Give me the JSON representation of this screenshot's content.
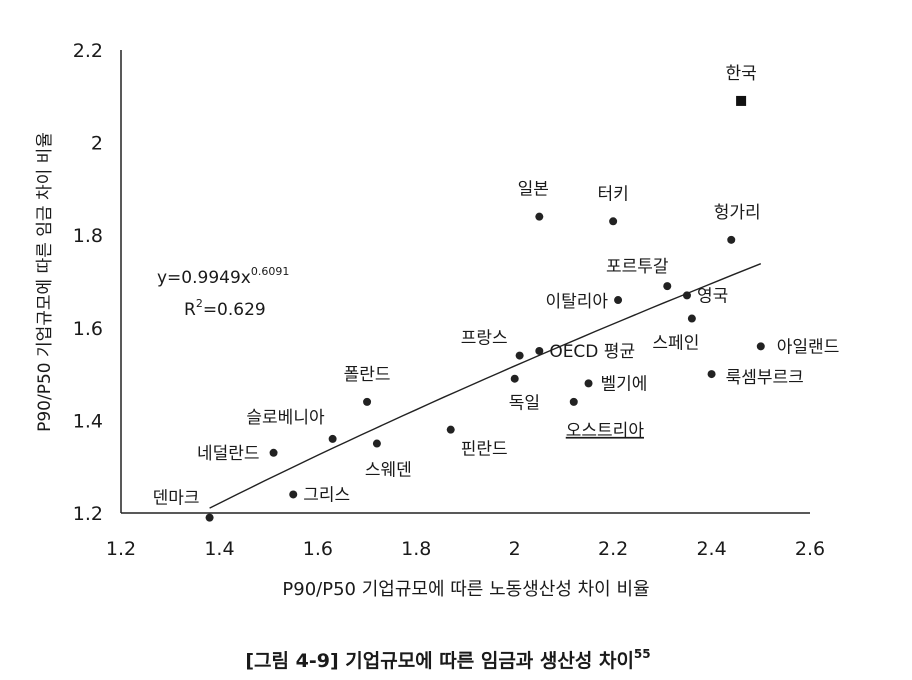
{
  "chart_data": {
    "type": "scatter",
    "xlabel": "P90/P50 기업규모에 따른 노동생산성 차이 비율",
    "ylabel": "P90/P50 기업규모에 따른 임금 차이 비율",
    "xlim": [
      1.2,
      2.6
    ],
    "ylim": [
      1.2,
      2.2
    ],
    "x_ticks": [
      "1.2",
      "1.4",
      "1.6",
      "1.8",
      "2",
      "2.2",
      "2.4",
      "2.6"
    ],
    "y_ticks": [
      "1.2",
      "1.4",
      "1.6",
      "1.8",
      "2",
      "2.2"
    ],
    "points": [
      {
        "label": "한국",
        "x": 2.46,
        "y": 2.09,
        "marker": "square"
      },
      {
        "label": "일본",
        "x": 2.05,
        "y": 1.84
      },
      {
        "label": "터키",
        "x": 2.2,
        "y": 1.83
      },
      {
        "label": "헝가리",
        "x": 2.44,
        "y": 1.79
      },
      {
        "label": "포르투갈",
        "x": 2.31,
        "y": 1.69
      },
      {
        "label": "이탈리아",
        "x": 2.21,
        "y": 1.66
      },
      {
        "label": "영국",
        "x": 2.35,
        "y": 1.67
      },
      {
        "label": "스페인",
        "x": 2.36,
        "y": 1.62
      },
      {
        "label": "아일랜드",
        "x": 2.5,
        "y": 1.56
      },
      {
        "label": "룩셈부르크",
        "x": 2.4,
        "y": 1.5
      },
      {
        "label": "프랑스",
        "x": 2.01,
        "y": 1.54
      },
      {
        "label": "OECD 평균",
        "x": 2.05,
        "y": 1.55,
        "underline": false
      },
      {
        "label": "벨기에",
        "x": 2.15,
        "y": 1.48
      },
      {
        "label": "독일",
        "x": 2.0,
        "y": 1.49
      },
      {
        "label": "오스트리아",
        "x": 2.12,
        "y": 1.44,
        "underline": true
      },
      {
        "label": "폴란드",
        "x": 1.7,
        "y": 1.44
      },
      {
        "label": "핀란드",
        "x": 1.87,
        "y": 1.38
      },
      {
        "label": "슬로베니아",
        "x": 1.63,
        "y": 1.36
      },
      {
        "label": "스웨덴",
        "x": 1.72,
        "y": 1.35
      },
      {
        "label": "네덜란드",
        "x": 1.51,
        "y": 1.33
      },
      {
        "label": "그리스",
        "x": 1.55,
        "y": 1.24
      },
      {
        "label": "덴마크",
        "x": 1.38,
        "y": 1.19
      }
    ],
    "trendline": {
      "equation": "y=0.9949x",
      "exponent": "0.6091",
      "r2_prefix": "R",
      "r2_sup": "2",
      "r2_value": "=0.629",
      "coef": 0.9949,
      "power": 0.6091,
      "x_range": [
        1.38,
        2.5
      ]
    },
    "grid": false,
    "legend": "none"
  },
  "caption": {
    "text": "[그림 4-9] 기업규모에 따른 임금과 생산성 차이",
    "footnote": "55"
  }
}
